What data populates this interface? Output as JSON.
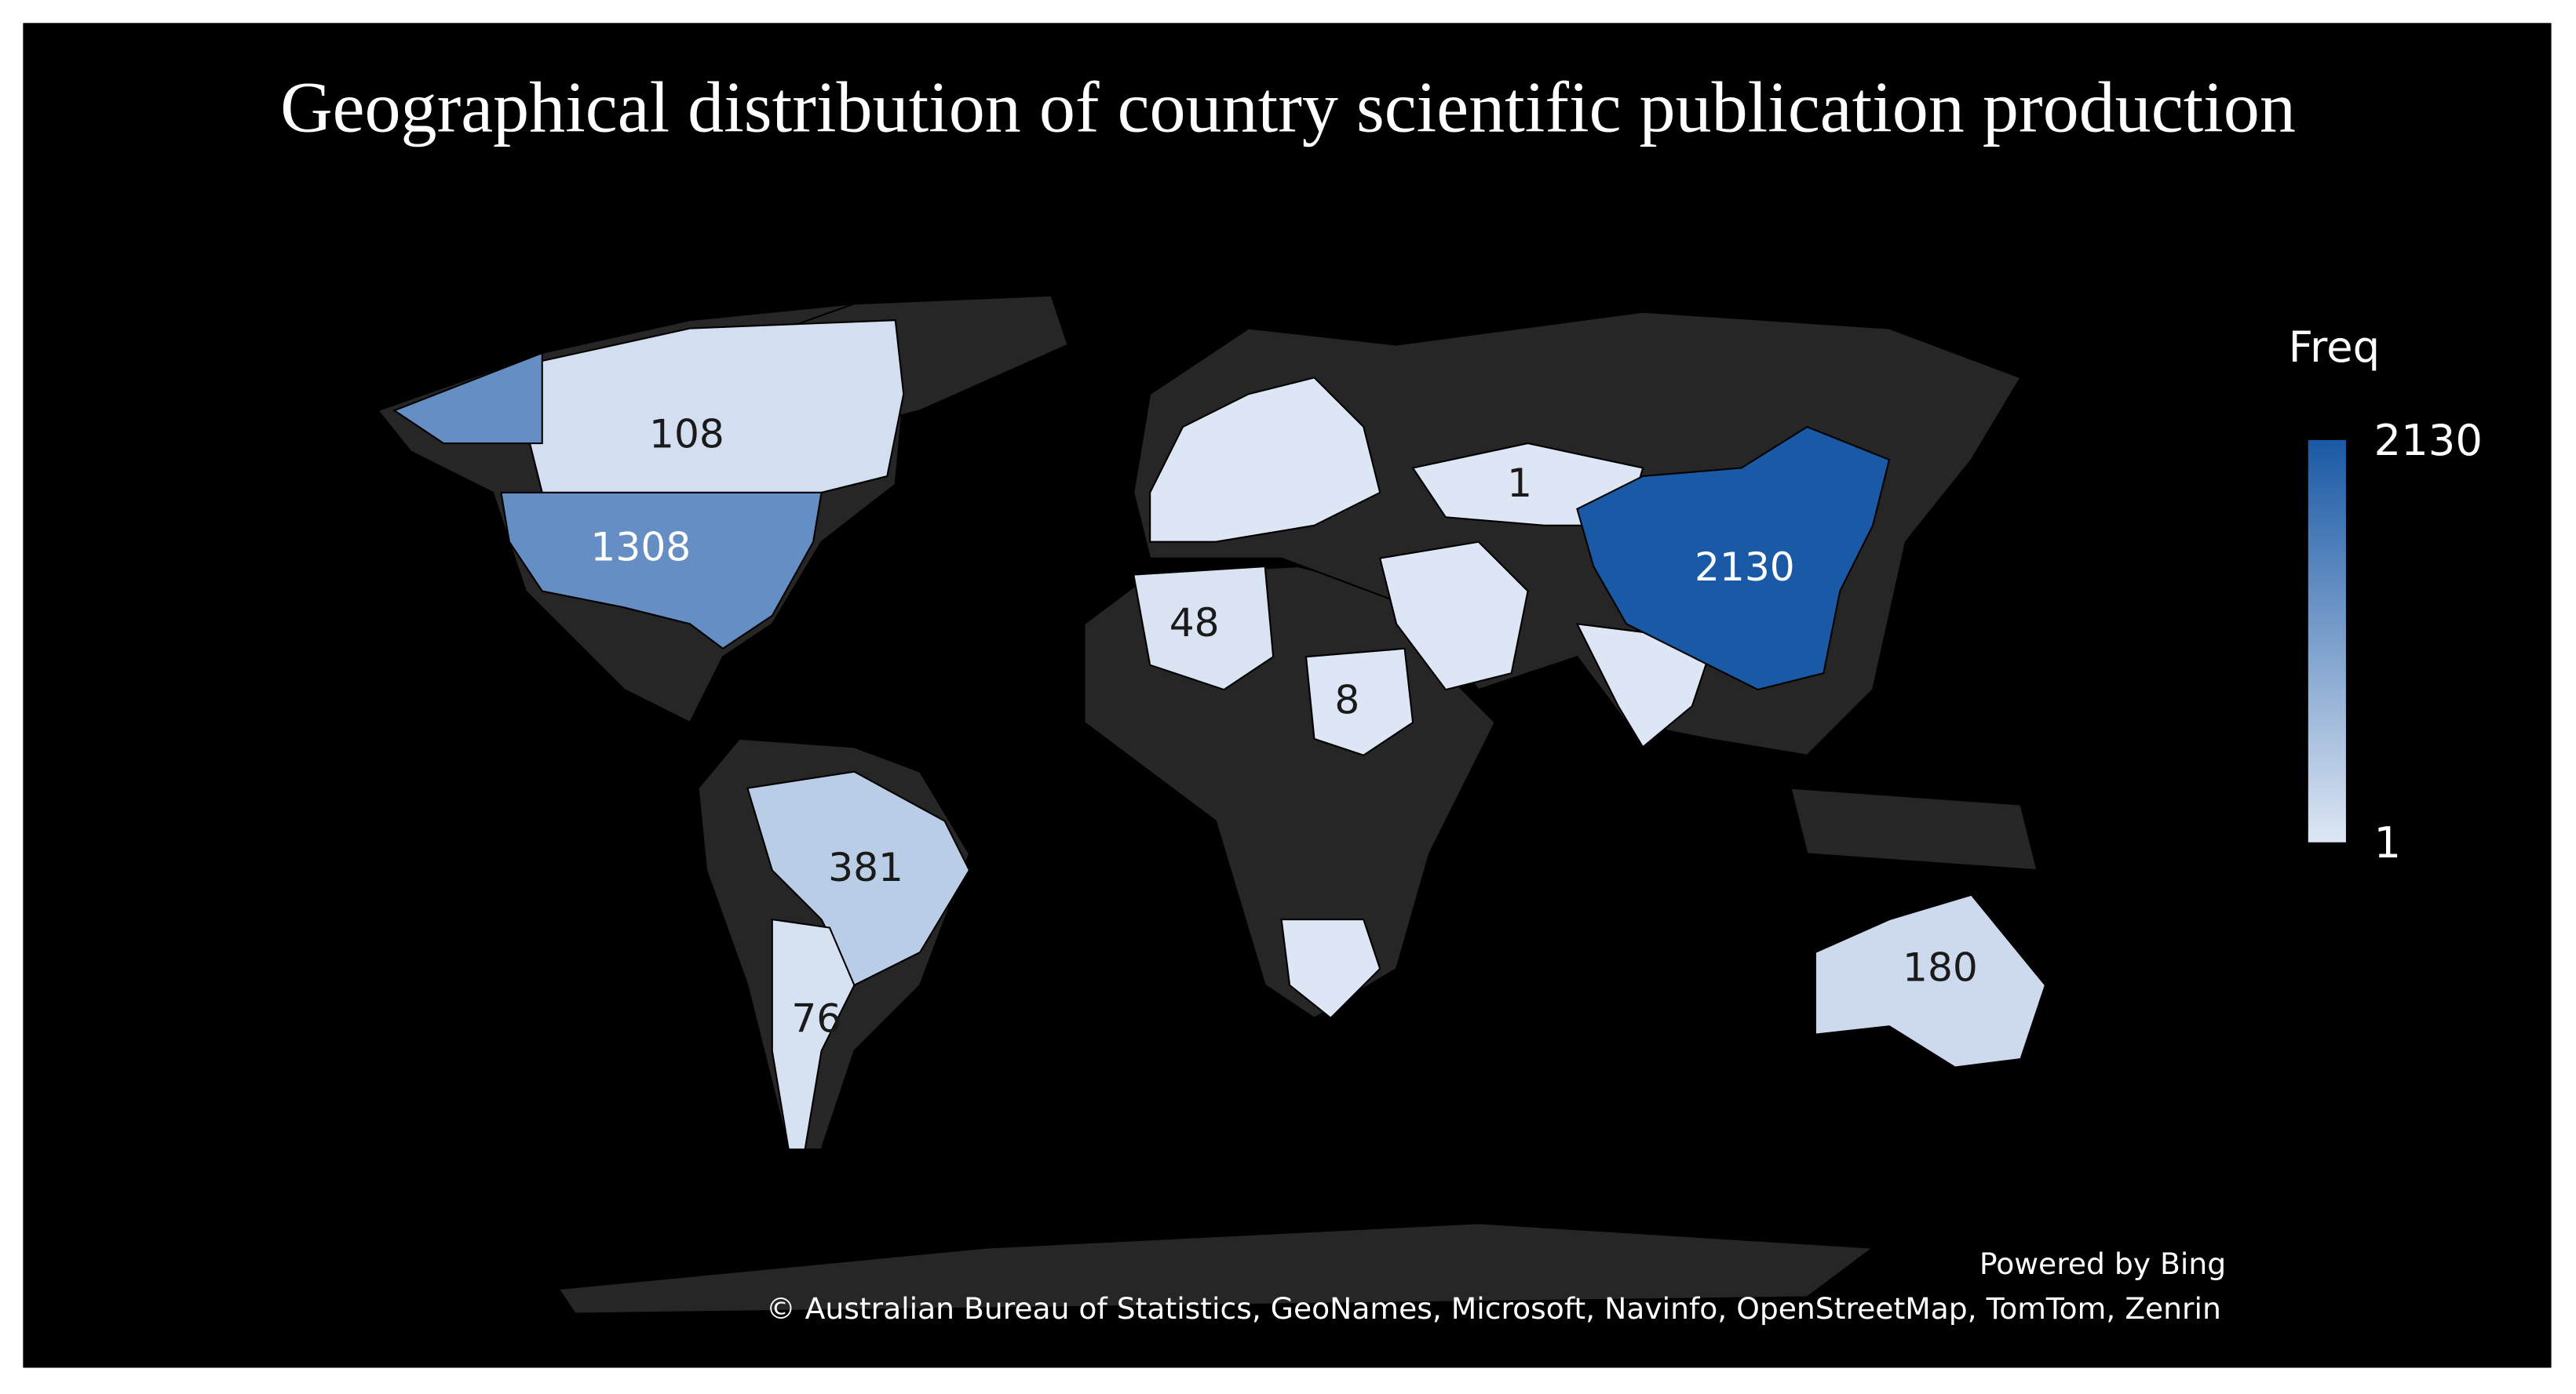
{
  "chart_data": {
    "type": "choropleth-map",
    "title": "Geographical distribution of country scientific publication production",
    "legend_title": "Freq",
    "colorlim": [
      1,
      2130
    ],
    "color_low": "#dde6f4",
    "color_high": "#1a59a5",
    "values": [
      108,
      1308,
      381,
      76,
      48,
      8,
      1,
      2130,
      180
    ]
  },
  "attribution": [
    "Powered by Bing",
    "© Australian Bureau of Statistics, GeoNames, Microsoft, Navinfo, OpenStreetMap, TomTom, Zenrin"
  ]
}
